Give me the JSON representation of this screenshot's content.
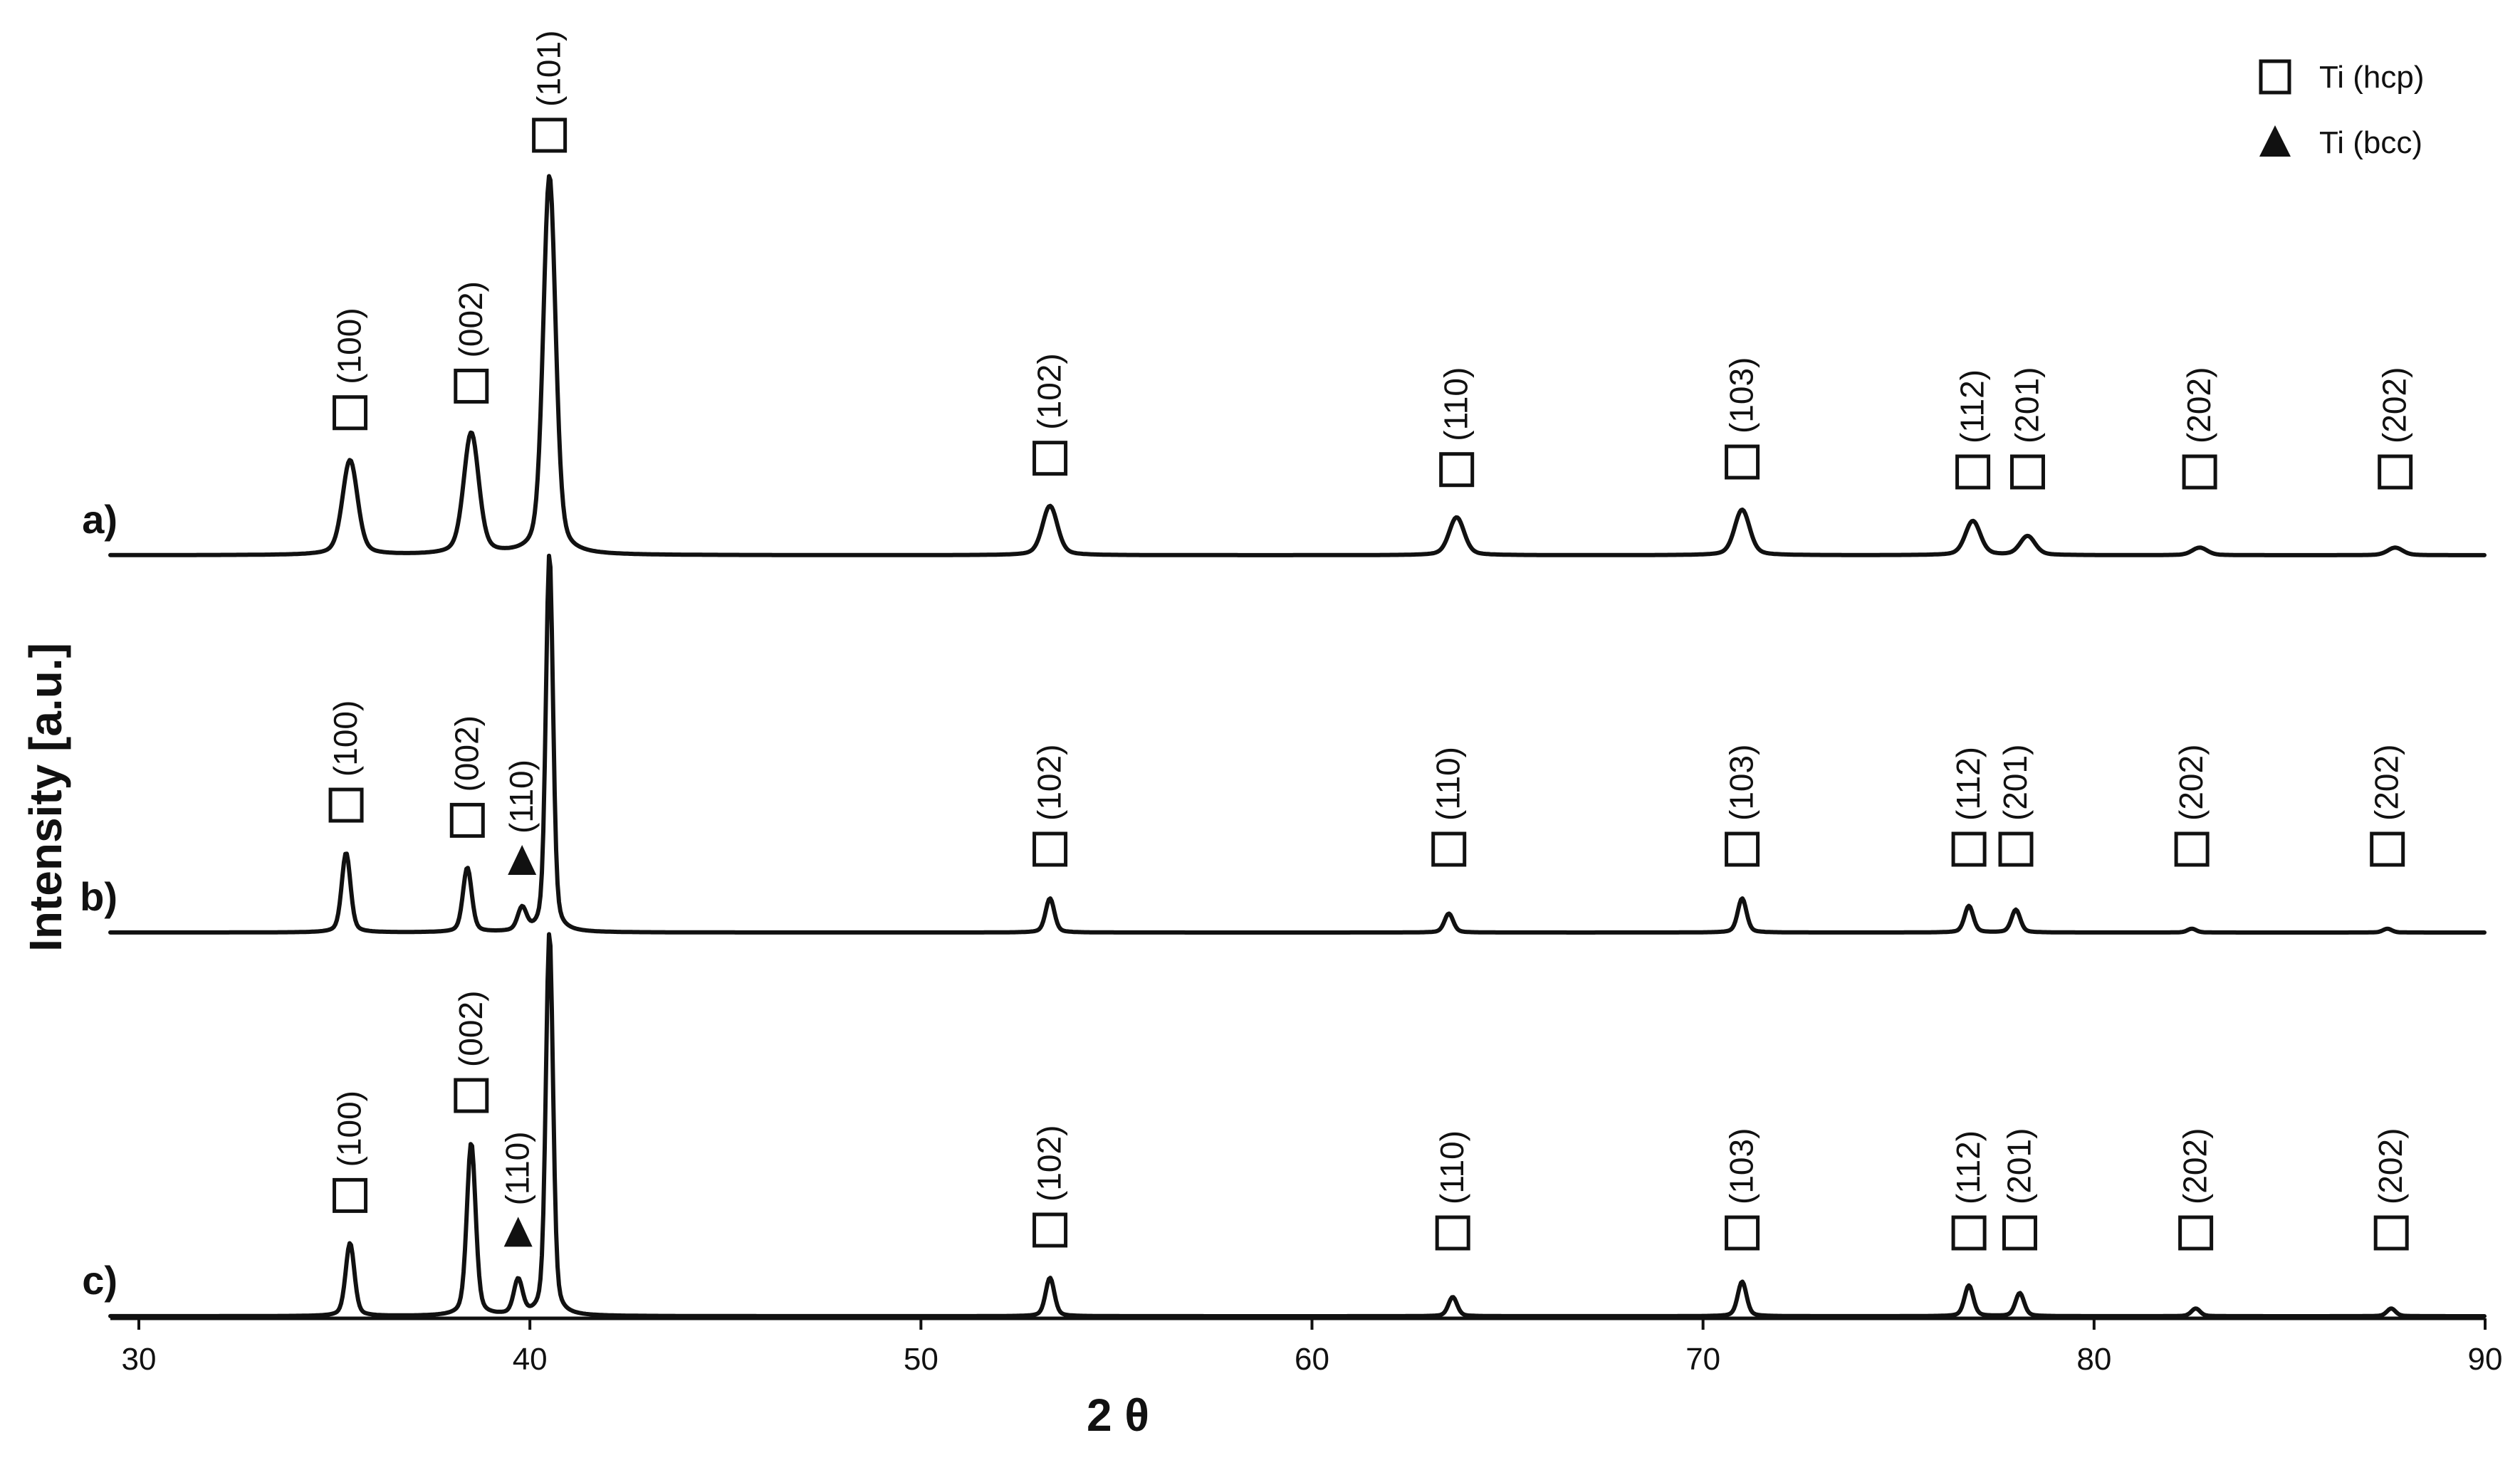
{
  "chart_data": {
    "type": "line",
    "title": "",
    "xlabel": "2 θ",
    "ylabel": "Intensity [a.u.]",
    "xlim": [
      30,
      90
    ],
    "xticks": [
      30,
      40,
      50,
      60,
      70,
      80,
      90
    ],
    "xtick_labels": [
      "30",
      "40",
      "50",
      "60",
      "70",
      "80",
      "90"
    ],
    "legend": {
      "position": "top-right",
      "entries": [
        {
          "label": "Ti (hcp)",
          "marker": "open-square"
        },
        {
          "label": "Ti (bcc)",
          "marker": "filled-triangle"
        }
      ]
    },
    "series": [
      {
        "name": "a)",
        "peaks": [
          {
            "x": 35.4,
            "rel_intensity": 0.25,
            "hkl": "(100)",
            "phase": "hcp"
          },
          {
            "x": 38.5,
            "rel_intensity": 0.32,
            "hkl": "(002)",
            "phase": "hcp"
          },
          {
            "x": 40.5,
            "rel_intensity": 1.0,
            "hkl": "(101)",
            "phase": "hcp"
          },
          {
            "x": 53.3,
            "rel_intensity": 0.13,
            "hkl": "(102)",
            "phase": "hcp"
          },
          {
            "x": 63.7,
            "rel_intensity": 0.1,
            "hkl": "(110)",
            "phase": "hcp"
          },
          {
            "x": 71.0,
            "rel_intensity": 0.12,
            "hkl": "(103)",
            "phase": "hcp"
          },
          {
            "x": 76.9,
            "rel_intensity": 0.09,
            "hkl": "(112)",
            "phase": "hcp"
          },
          {
            "x": 78.3,
            "rel_intensity": 0.05,
            "hkl": "(201)",
            "phase": "hcp"
          },
          {
            "x": 82.7,
            "rel_intensity": 0.02,
            "hkl": "(202)",
            "phase": "hcp"
          },
          {
            "x": 87.7,
            "rel_intensity": 0.02,
            "hkl": "(202)",
            "phase": "hcp"
          }
        ]
      },
      {
        "name": "b)",
        "peaks": [
          {
            "x": 35.3,
            "rel_intensity": 0.21,
            "hkl": "(100)",
            "phase": "hcp"
          },
          {
            "x": 38.4,
            "rel_intensity": 0.17,
            "hkl": "(002)",
            "phase": "hcp"
          },
          {
            "x": 39.8,
            "rel_intensity": 0.06,
            "hkl": "(110)",
            "phase": "bcc"
          },
          {
            "x": 40.5,
            "rel_intensity": 1.0,
            "hkl": "",
            "phase": "hcp"
          },
          {
            "x": 53.3,
            "rel_intensity": 0.09,
            "hkl": "(102)",
            "phase": "hcp"
          },
          {
            "x": 63.5,
            "rel_intensity": 0.05,
            "hkl": "(110)",
            "phase": "hcp"
          },
          {
            "x": 71.0,
            "rel_intensity": 0.09,
            "hkl": "(103)",
            "phase": "hcp"
          },
          {
            "x": 76.8,
            "rel_intensity": 0.07,
            "hkl": "(112)",
            "phase": "hcp"
          },
          {
            "x": 78.0,
            "rel_intensity": 0.06,
            "hkl": "(201)",
            "phase": "hcp"
          },
          {
            "x": 82.5,
            "rel_intensity": 0.01,
            "hkl": "(202)",
            "phase": "hcp"
          },
          {
            "x": 87.5,
            "rel_intensity": 0.01,
            "hkl": "(202)",
            "phase": "hcp"
          }
        ]
      },
      {
        "name": "c)",
        "peaks": [
          {
            "x": 35.4,
            "rel_intensity": 0.19,
            "hkl": "(100)",
            "phase": "hcp"
          },
          {
            "x": 38.5,
            "rel_intensity": 0.45,
            "hkl": "(002)",
            "phase": "hcp"
          },
          {
            "x": 39.7,
            "rel_intensity": 0.09,
            "hkl": "(110)",
            "phase": "bcc"
          },
          {
            "x": 40.5,
            "rel_intensity": 1.0,
            "hkl": "",
            "phase": "hcp"
          },
          {
            "x": 53.3,
            "rel_intensity": 0.1,
            "hkl": "(102)",
            "phase": "hcp"
          },
          {
            "x": 63.6,
            "rel_intensity": 0.05,
            "hkl": "(110)",
            "phase": "hcp"
          },
          {
            "x": 71.0,
            "rel_intensity": 0.09,
            "hkl": "(103)",
            "phase": "hcp"
          },
          {
            "x": 76.8,
            "rel_intensity": 0.08,
            "hkl": "(112)",
            "phase": "hcp"
          },
          {
            "x": 78.1,
            "rel_intensity": 0.06,
            "hkl": "(201)",
            "phase": "hcp"
          },
          {
            "x": 82.6,
            "rel_intensity": 0.02,
            "hkl": "(202)",
            "phase": "hcp"
          },
          {
            "x": 87.6,
            "rel_intensity": 0.02,
            "hkl": "(202)",
            "phase": "hcp"
          }
        ]
      }
    ]
  }
}
